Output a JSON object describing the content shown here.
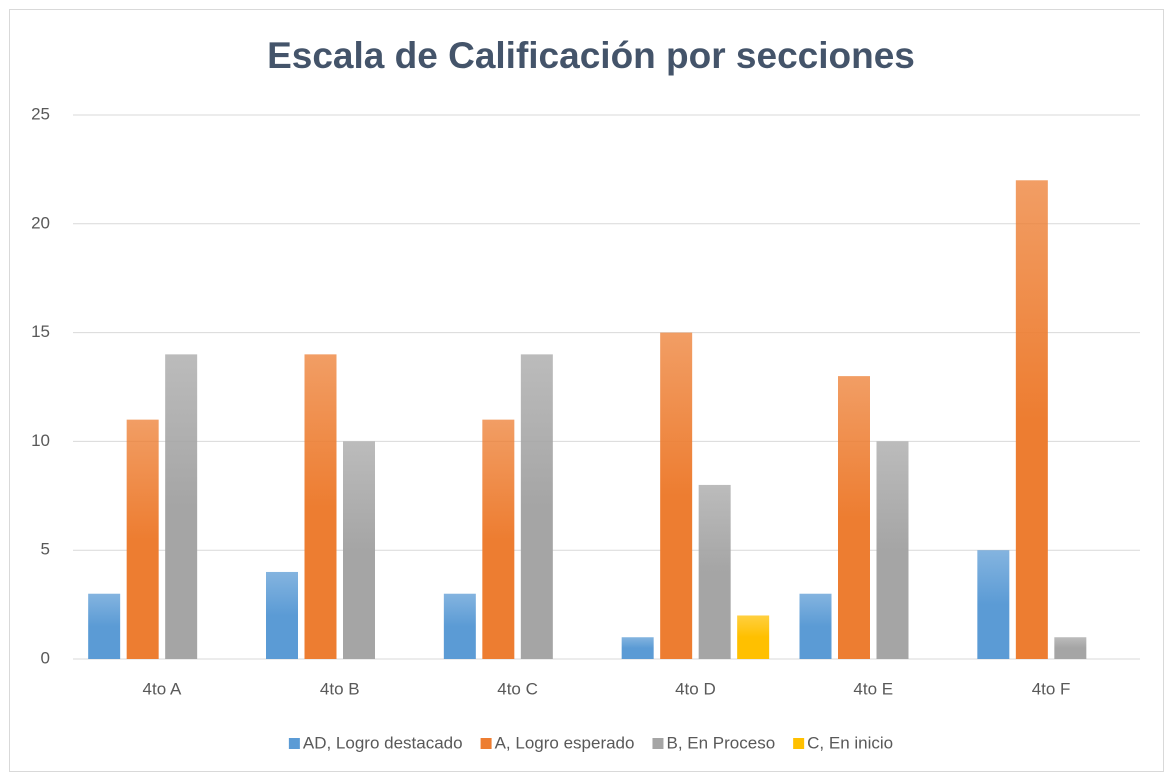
{
  "chart_data": {
    "type": "bar",
    "title": "Escala de Calificación por secciones",
    "categories": [
      "4to A",
      "4to B",
      "4to C",
      "4to D",
      "4to E",
      "4to F"
    ],
    "series": [
      {
        "name": "AD, Logro destacado",
        "color": "#5b9bd5",
        "values": [
          3,
          4,
          3,
          1,
          3,
          5
        ]
      },
      {
        "name": "A, Logro esperado",
        "color": "#ed7d31",
        "values": [
          11,
          14,
          11,
          15,
          13,
          22
        ]
      },
      {
        "name": "B, En Proceso",
        "color": "#a5a5a5",
        "values": [
          14,
          10,
          14,
          8,
          10,
          1
        ]
      },
      {
        "name": "C, En inicio",
        "color": "#ffc000",
        "values": [
          0,
          0,
          0,
          2,
          0,
          0
        ]
      }
    ],
    "ylim": [
      0,
      25
    ],
    "yticks": [
      0,
      5,
      10,
      15,
      20,
      25
    ],
    "grid": true,
    "legend": "bottom"
  }
}
